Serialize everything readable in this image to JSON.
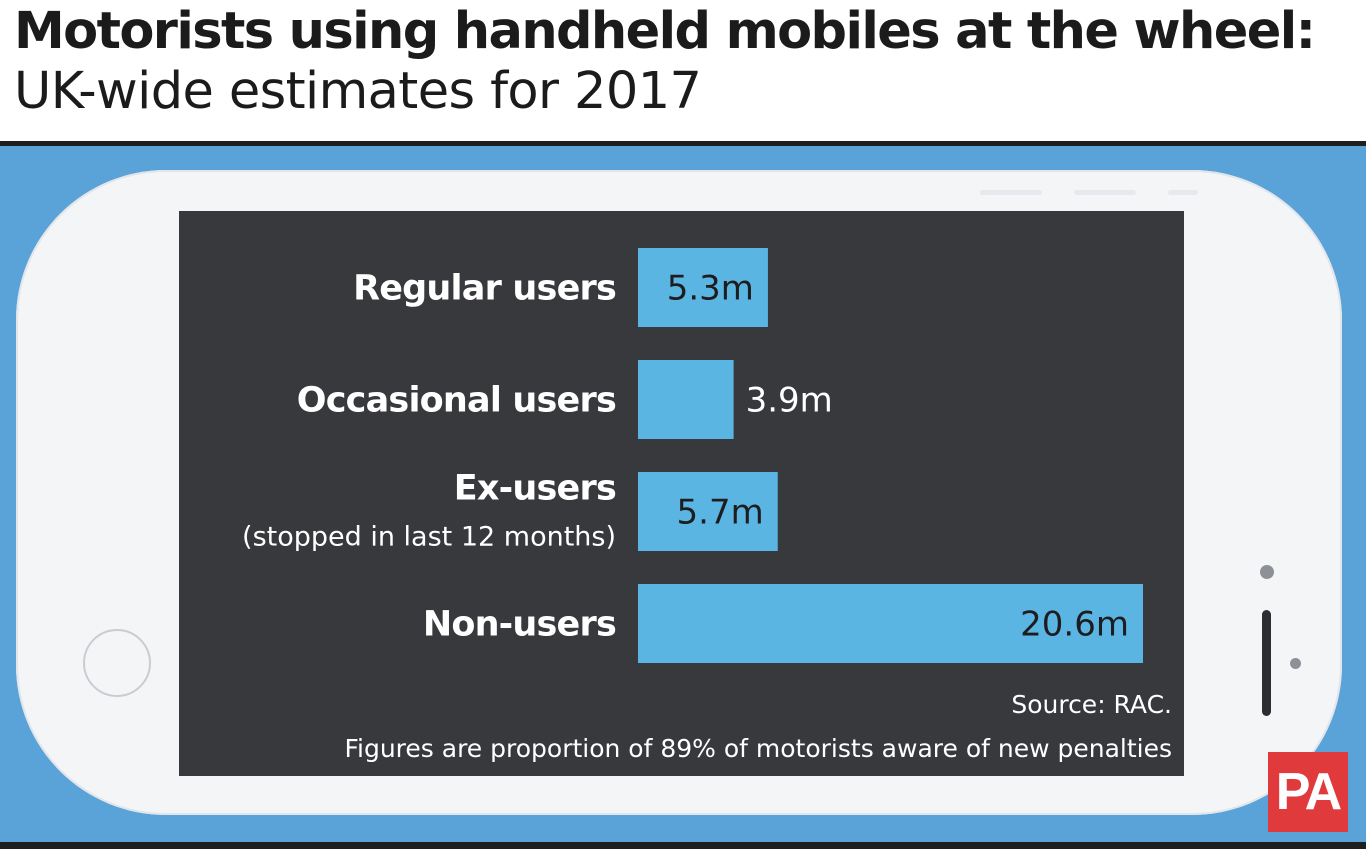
{
  "header": {
    "title": "Motorists using handheld mobiles at the wheel:",
    "subtitle": "UK-wide estimates for 2017"
  },
  "chart_data": {
    "type": "bar",
    "orientation": "horizontal",
    "categories": [
      "Regular users",
      "Occasional users",
      "Ex-users",
      "Non-users"
    ],
    "category_sublabels": [
      "",
      "",
      "(stopped in last 12 months)",
      ""
    ],
    "values": [
      5.3,
      3.9,
      5.7,
      20.6
    ],
    "value_labels": [
      "5.3m",
      "3.9m",
      "5.7m",
      "20.6m"
    ],
    "unit": "m",
    "xlim": [
      0,
      20.6
    ],
    "grid": false,
    "legend": false,
    "bar_color": "#5bb5e3",
    "background_color": "#38393d",
    "source": "Source: RAC.",
    "note": "Figures are proportion of 89% of motorists aware of new penalties"
  },
  "colors": {
    "background_blue": "#5aa3d9",
    "phone_body": "#f4f5f7",
    "text_dark": "#1b1b1b"
  },
  "branding": {
    "logo_text": "PA",
    "logo_color": "#e03a3c"
  },
  "icons": {
    "home_button": "phone-home-button-icon",
    "camera": "phone-camera-icon",
    "speaker": "phone-speaker-icon"
  }
}
